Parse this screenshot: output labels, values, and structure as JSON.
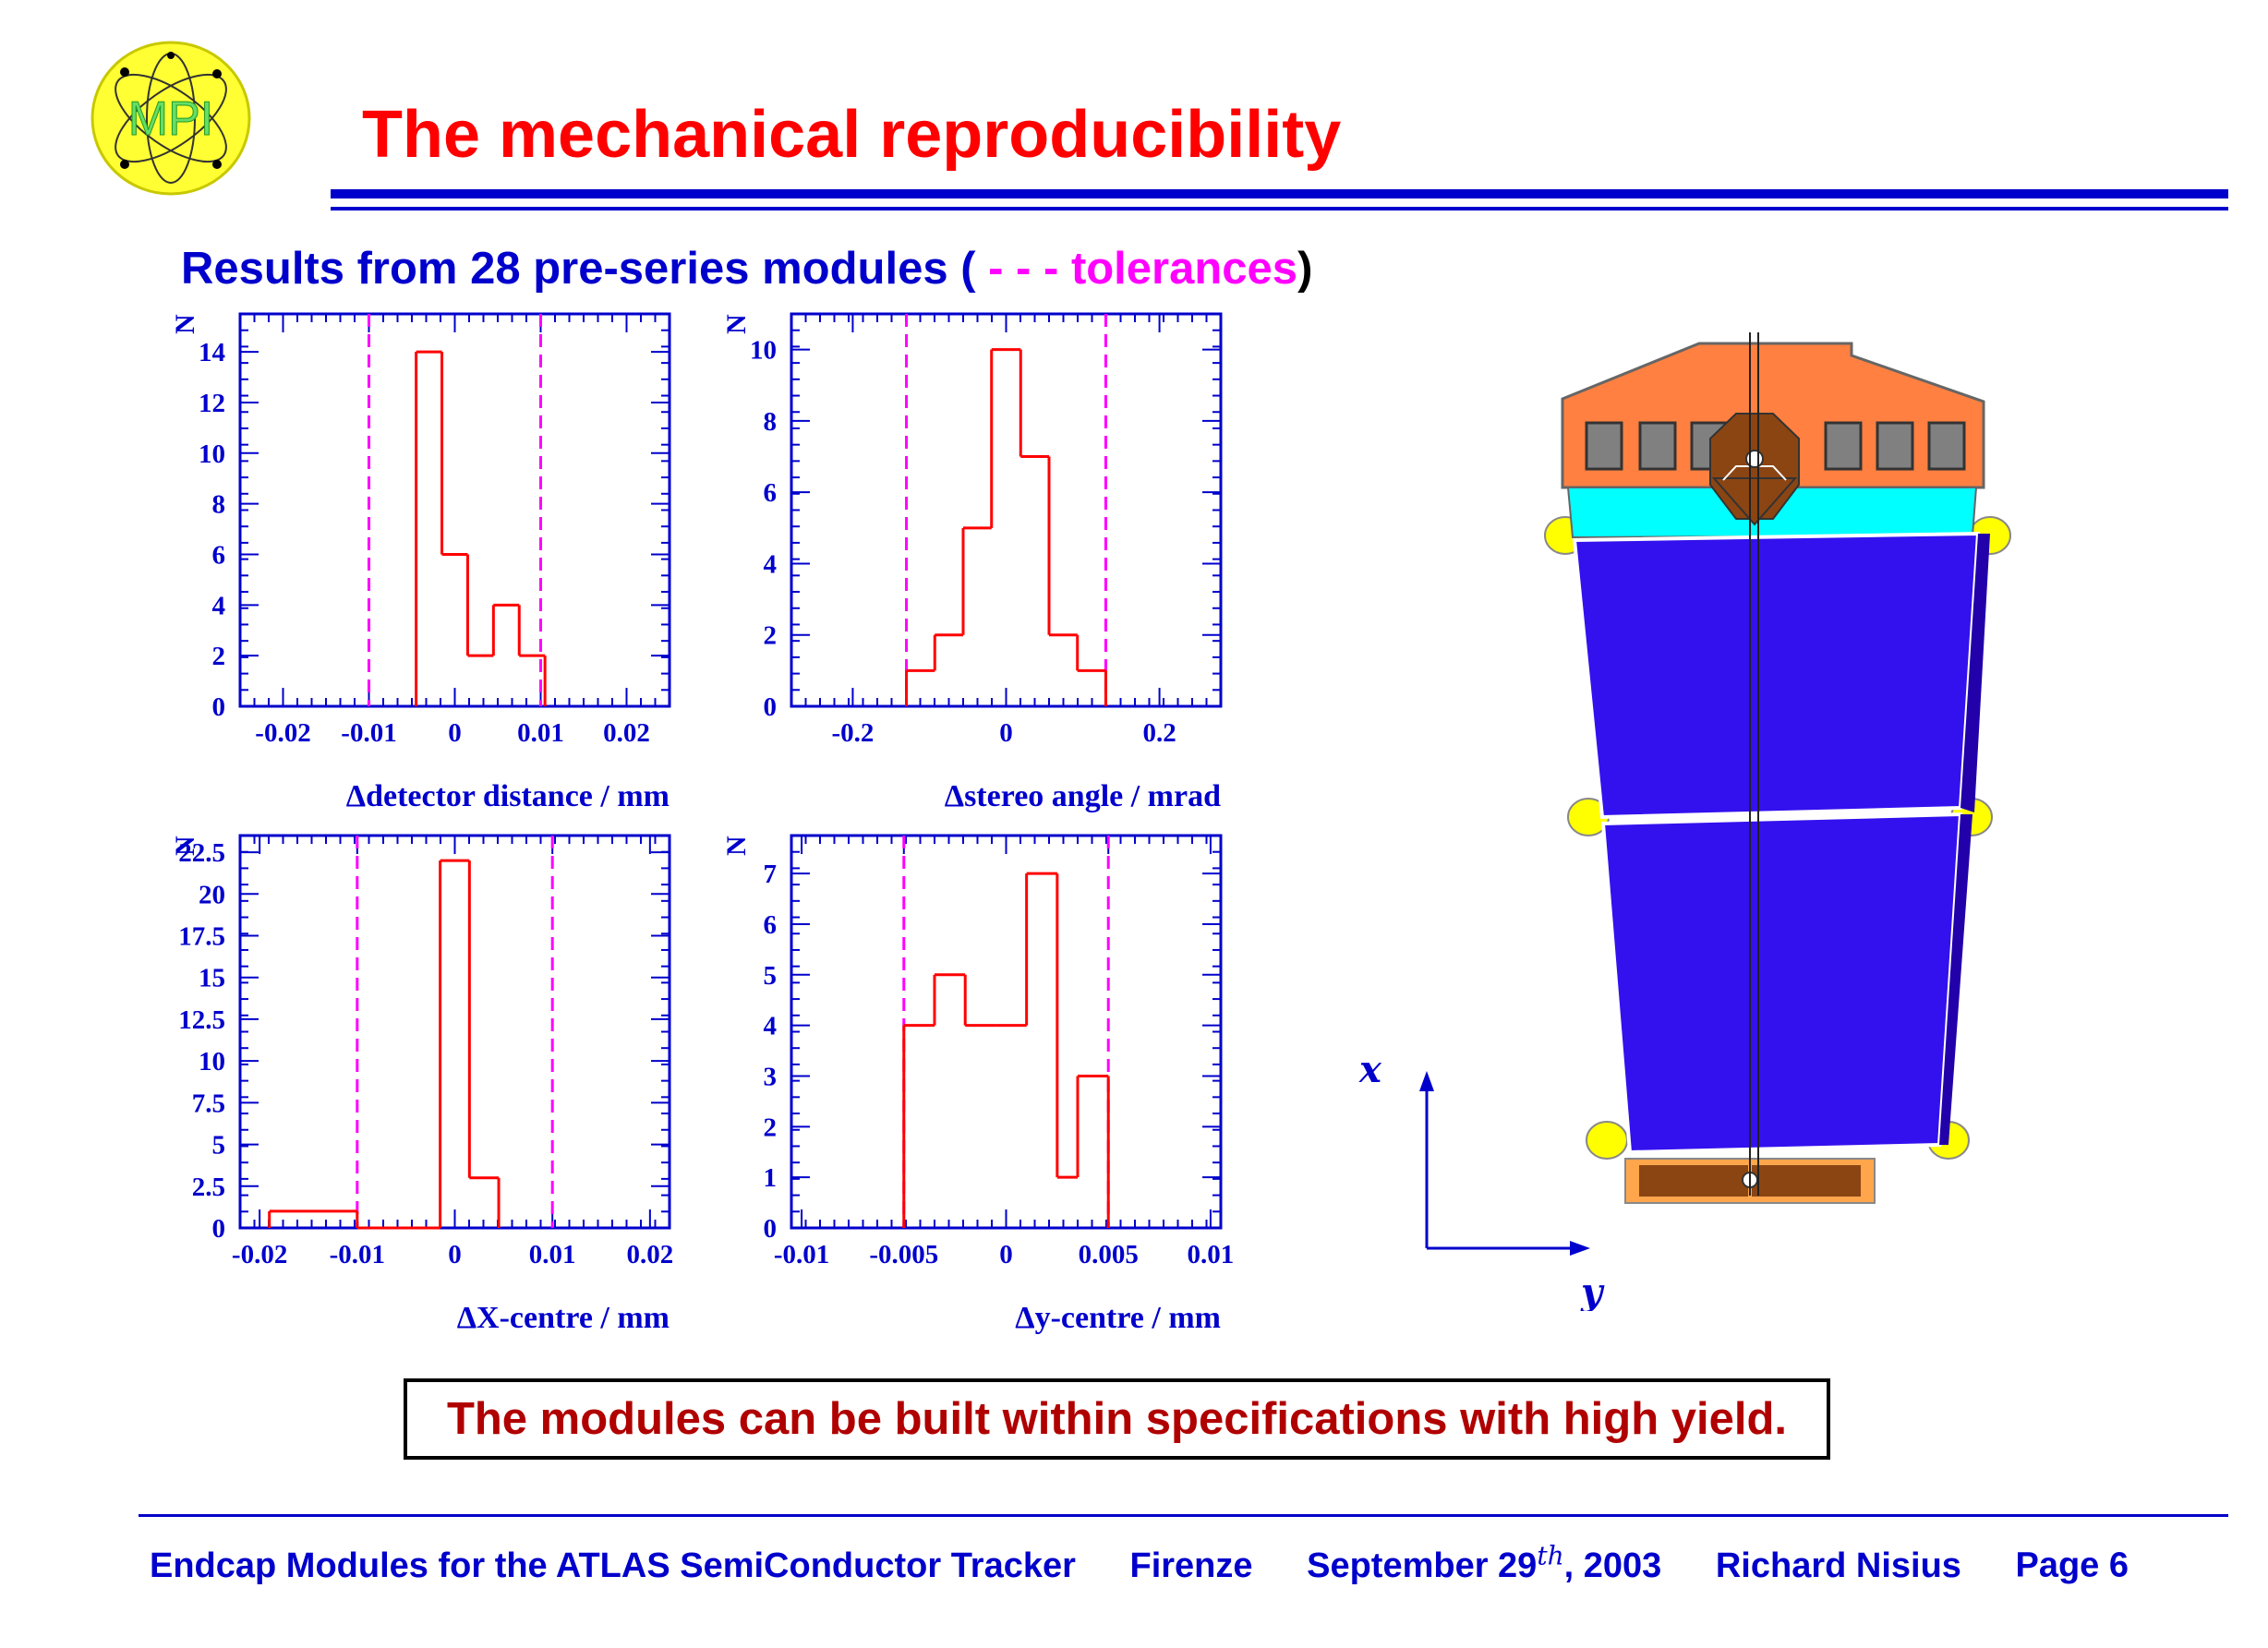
{
  "slide": {
    "title": "The mechanical reproducibility",
    "logo_text": "MPI",
    "subtitle": {
      "prefix": "Results from 28 pre-series modules (",
      "dash": " - - - ",
      "tolerances": "tolerances",
      "suffix": ")"
    },
    "conclusion": "The modules can be built within specifications with high yield.",
    "footer": {
      "talk": "Endcap Modules for the ATLAS SemiConductor Tracker",
      "place": "Firenze",
      "date_prefix": "September 29",
      "date_sup": "th",
      "date_suffix": ", 2003",
      "author": "Richard Nisius",
      "page": "Page 6"
    },
    "diagram": {
      "x_axis_label": "x",
      "y_axis_label": "y"
    },
    "colors": {
      "title": "#ff0000",
      "text": "#0000cc",
      "histogram": "#ff0000",
      "tolerance": "#ff00ff",
      "conclusion": "#b00000",
      "module_blue": "#3311ee",
      "hybrid_orange": "#ff8040",
      "cyan": "#00ffff",
      "brown": "#8b4513",
      "yellow": "#ffff00"
    }
  },
  "chart_data": [
    {
      "type": "histogram",
      "xlabel": "Δdetector distance / mm",
      "ylabel": "N",
      "xlim": [
        -0.025,
        0.025
      ],
      "ylim": [
        0,
        15.5
      ],
      "xticks": [
        -0.02,
        -0.01,
        0,
        0.01,
        0.02
      ],
      "xtick_labels": [
        "-0.02",
        "-0.01",
        "0",
        "0.01",
        "0.02"
      ],
      "yticks": [
        0,
        2,
        4,
        6,
        8,
        10,
        12,
        14
      ],
      "ytick_labels": [
        "0",
        "2",
        "4",
        "6",
        "8",
        "10",
        "12",
        "14"
      ],
      "bin_edges": [
        -0.0045,
        -0.0015,
        0.0015,
        0.0045,
        0.0075,
        0.0105
      ],
      "counts": [
        14,
        6,
        2,
        4,
        2
      ],
      "tolerances": [
        -0.01,
        0.01
      ]
    },
    {
      "type": "histogram",
      "xlabel": "Δstereo angle / mrad",
      "ylabel": "N",
      "xlim": [
        -0.28,
        0.28
      ],
      "ylim": [
        0,
        11
      ],
      "xticks": [
        -0.2,
        0,
        0.2
      ],
      "xtick_labels": [
        "-0.2",
        "0",
        "0.2"
      ],
      "yticks": [
        0,
        2,
        4,
        6,
        8,
        10
      ],
      "ytick_labels": [
        "0",
        "2",
        "4",
        "6",
        "8",
        "10"
      ],
      "bin_edges": [
        -0.13,
        -0.093,
        -0.056,
        -0.019,
        0.019,
        0.056,
        0.093,
        0.13
      ],
      "counts": [
        1,
        2,
        5,
        10,
        7,
        2,
        1
      ],
      "tolerances": [
        -0.13,
        0.13
      ]
    },
    {
      "type": "histogram",
      "xlabel": "ΔX-centre / mm",
      "ylabel": "N",
      "xlim": [
        -0.022,
        0.022
      ],
      "ylim": [
        0,
        23.5
      ],
      "xticks": [
        -0.02,
        -0.01,
        0,
        0.01,
        0.02
      ],
      "xtick_labels": [
        "-0.02",
        "-0.01",
        "0",
        "0.01",
        "0.02"
      ],
      "yticks": [
        0,
        2.5,
        5,
        7.5,
        10,
        12.5,
        15,
        17.5,
        20,
        22.5
      ],
      "ytick_labels": [
        "0",
        "2.5",
        "5",
        "7.5",
        "10",
        "12.5",
        "15",
        "17.5",
        "20",
        "22.5"
      ],
      "bin_edges": [
        -0.019,
        -0.01,
        -0.0015,
        0.0015,
        0.0045
      ],
      "counts": [
        1,
        0,
        22,
        3
      ],
      "tolerances": [
        -0.01,
        0.01
      ]
    },
    {
      "type": "histogram",
      "xlabel": "Δy-centre / mm",
      "ylabel": "N",
      "xlim": [
        -0.0105,
        0.0105
      ],
      "ylim": [
        0,
        7.75
      ],
      "xticks": [
        -0.01,
        -0.005,
        0,
        0.005,
        0.01
      ],
      "xtick_labels": [
        "-0.01",
        "-0.005",
        "0",
        "0.005",
        "0.01"
      ],
      "yticks": [
        0,
        1,
        2,
        3,
        4,
        5,
        6,
        7
      ],
      "ytick_labels": [
        "0",
        "1",
        "2",
        "3",
        "4",
        "5",
        "6",
        "7"
      ],
      "bin_edges": [
        -0.005,
        -0.0035,
        -0.002,
        -0.0005,
        0.001,
        0.0025,
        0.0035,
        0.005
      ],
      "counts": [
        4,
        5,
        4,
        4,
        7,
        1,
        3
      ],
      "tolerances": [
        -0.005,
        0.005
      ]
    }
  ]
}
